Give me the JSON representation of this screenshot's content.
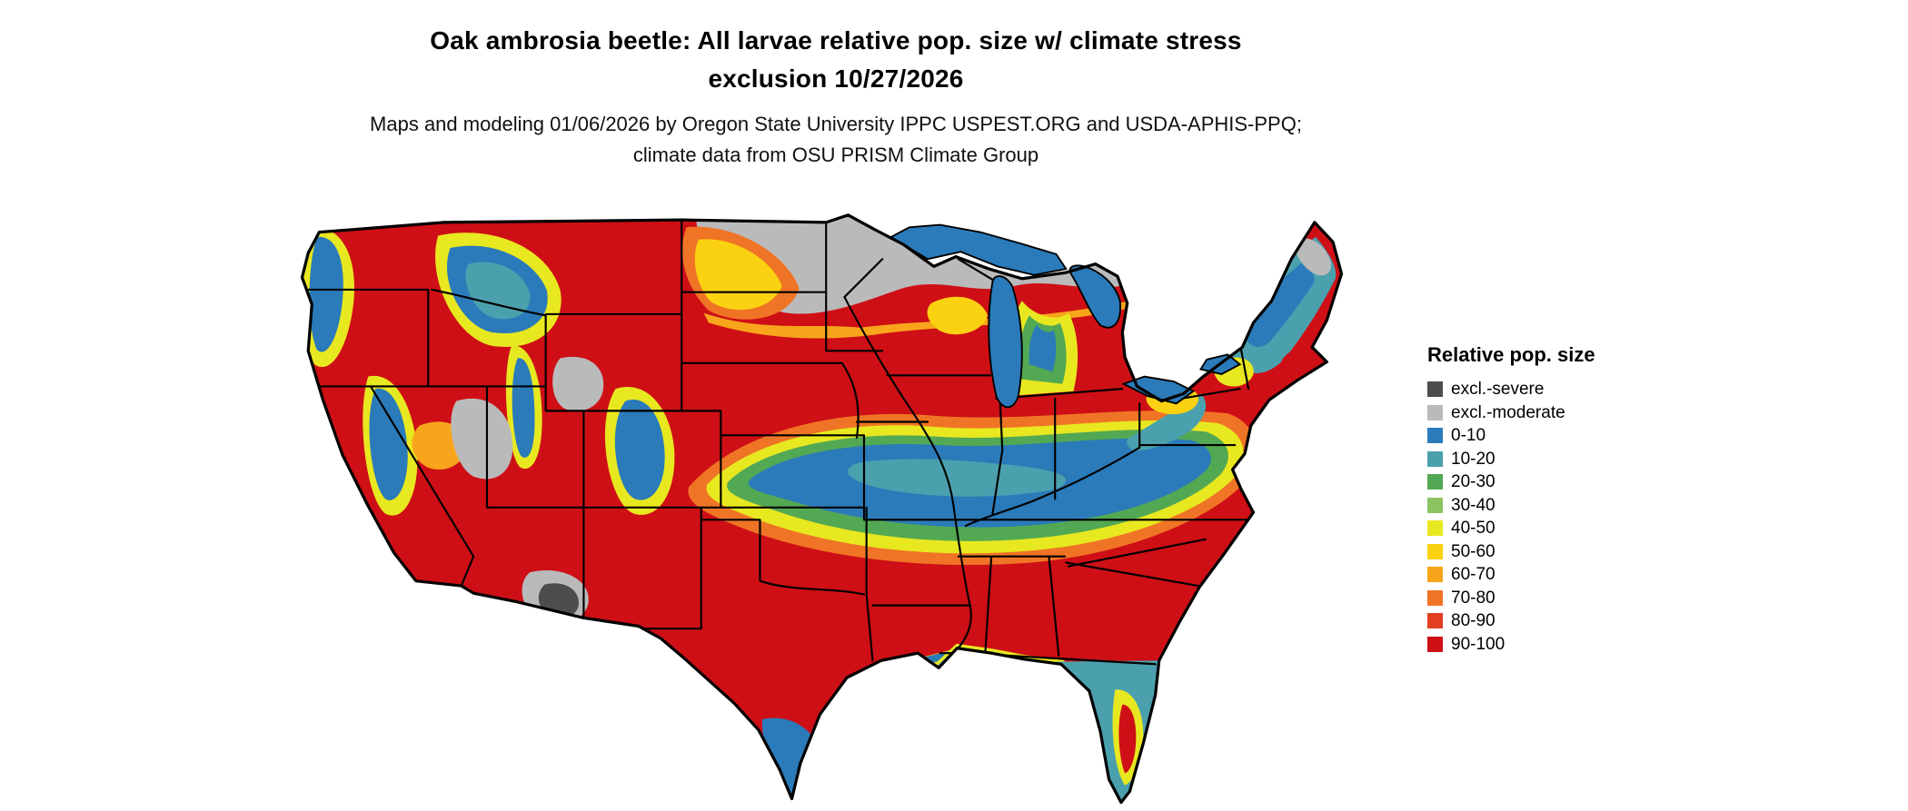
{
  "page": {
    "background": "#ffffff"
  },
  "header": {
    "title": "Oak ambrosia beetle: All larvae relative pop. size w/ climate stress exclusion 10/27/2026",
    "subtitle": "Maps and modeling 01/06/2026 by Oregon State University IPPC USPEST.ORG and USDA-APHIS-PPQ; climate data from OSU PRISM Climate Group"
  },
  "legend": {
    "title": "Relative pop. size",
    "entries": [
      {
        "label": "excl.-severe",
        "color": "#4d4d4d"
      },
      {
        "label": "excl.-moderate",
        "color": "#bababa"
      },
      {
        "label": "0-10",
        "color": "#2b7bba"
      },
      {
        "label": "10-20",
        "color": "#4ba0ae"
      },
      {
        "label": "20-30",
        "color": "#53a853"
      },
      {
        "label": "30-40",
        "color": "#8cc461"
      },
      {
        "label": "40-50",
        "color": "#e8e820"
      },
      {
        "label": "50-60",
        "color": "#fbd212"
      },
      {
        "label": "60-70",
        "color": "#f8a51b"
      },
      {
        "label": "70-80",
        "color": "#f07425"
      },
      {
        "label": "80-90",
        "color": "#e23e22"
      },
      {
        "label": "90-100",
        "color": "#ce0f16"
      }
    ]
  },
  "map": {
    "outline_color": "#000000",
    "state_border_color": "#000000"
  }
}
